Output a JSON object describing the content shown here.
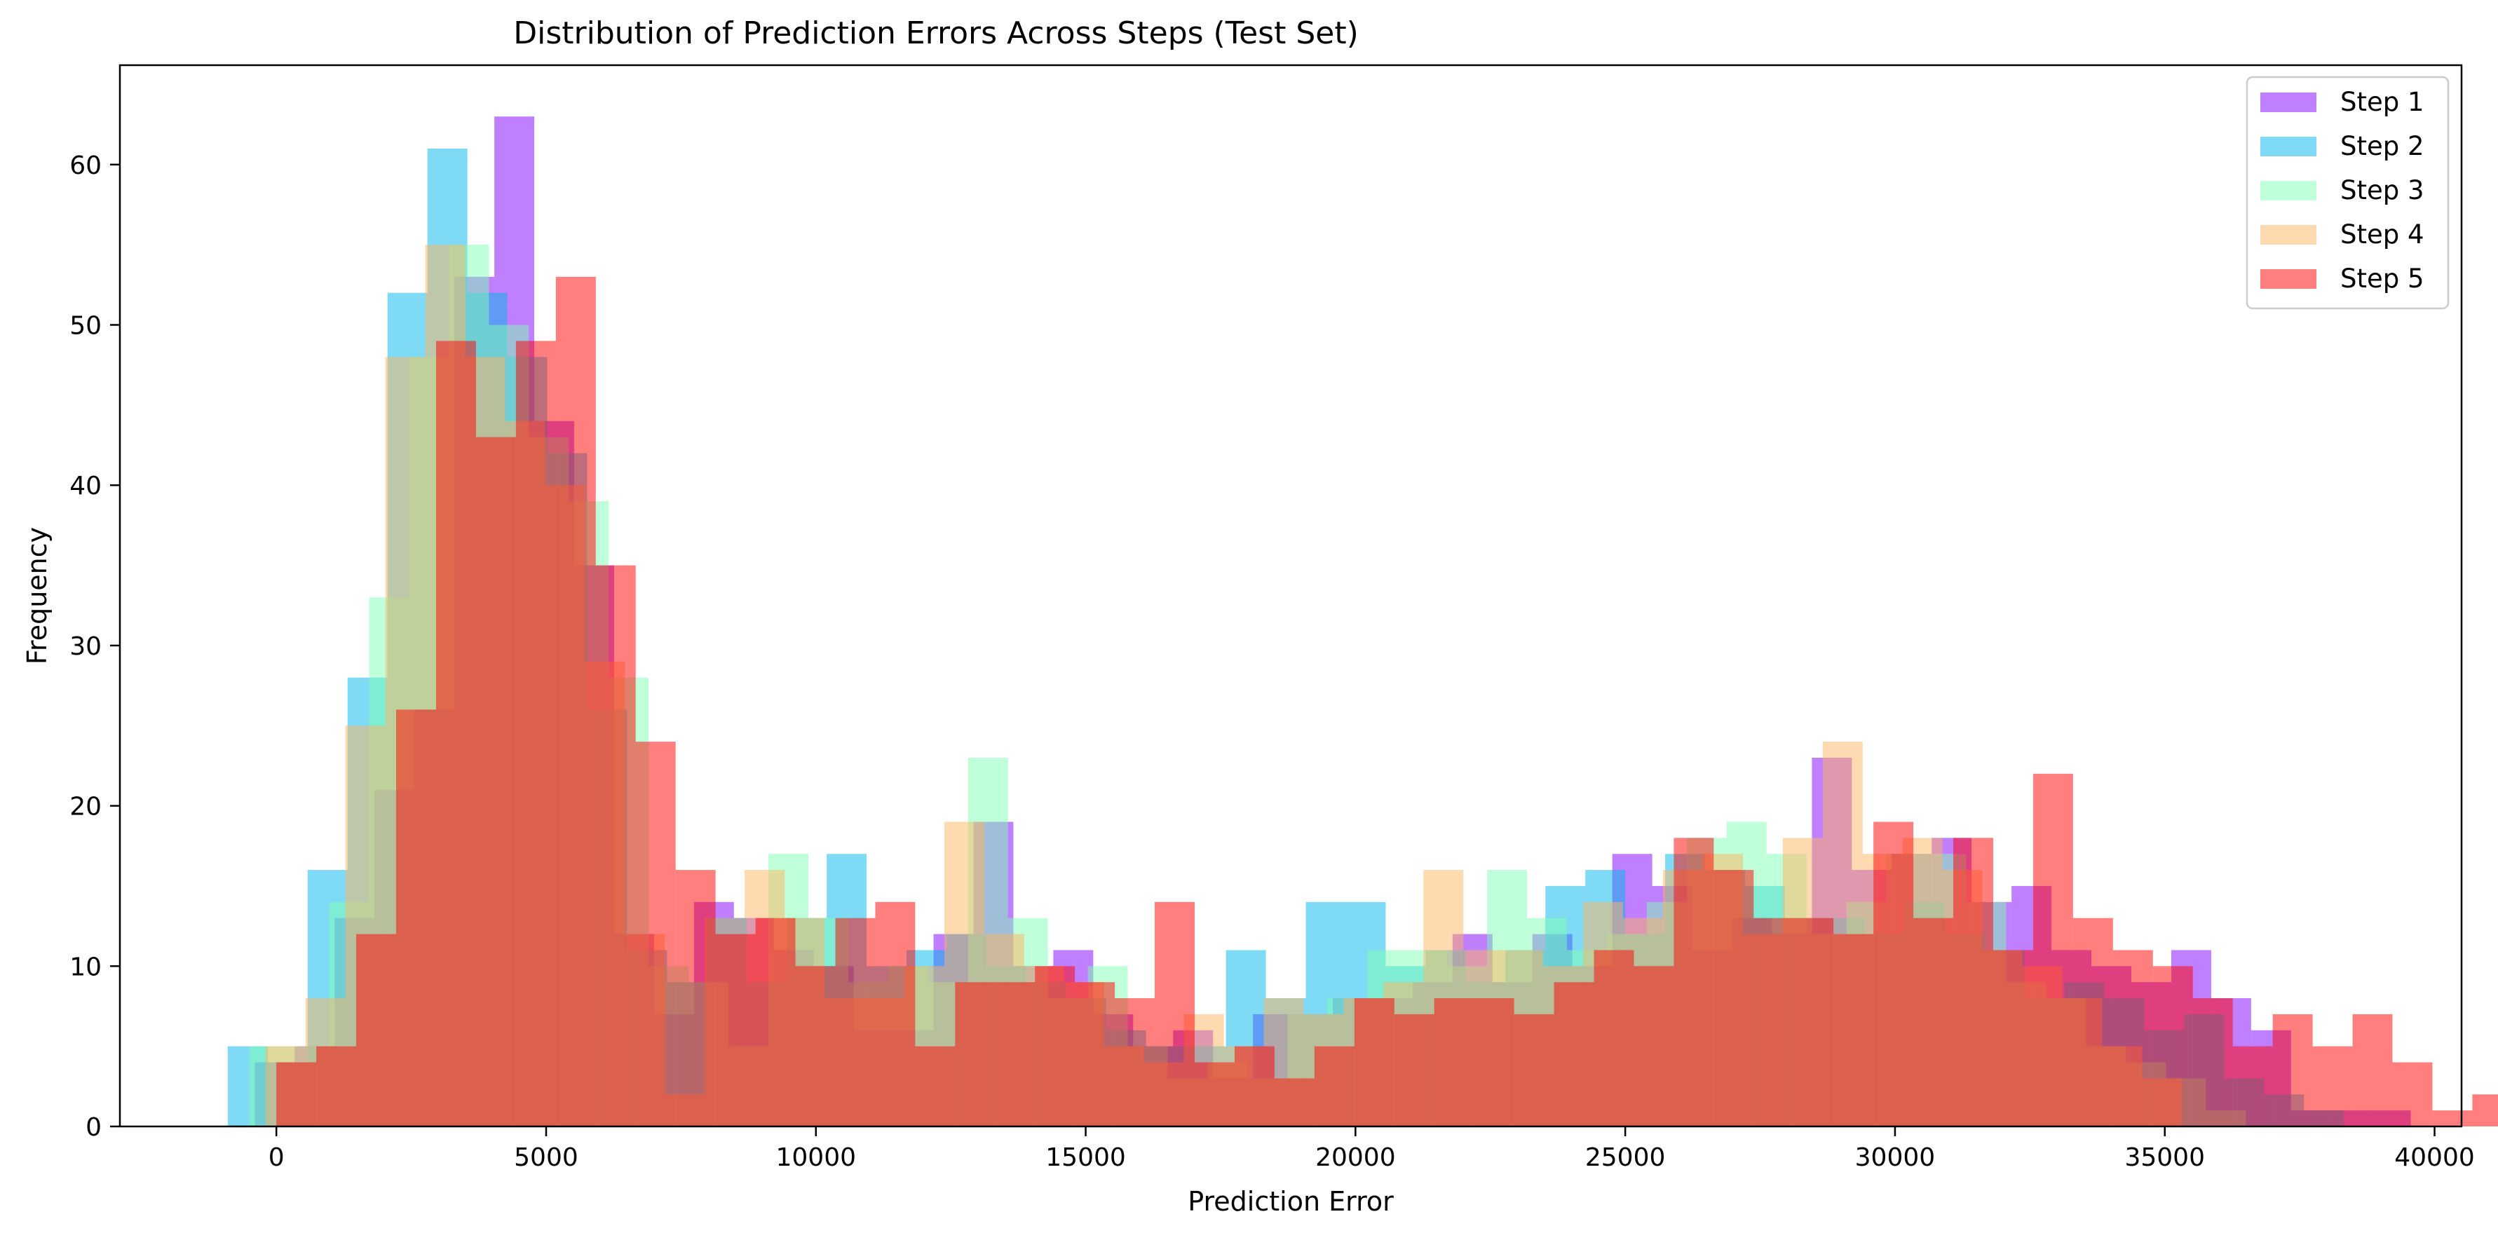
{
  "chart_data": {
    "type": "bar",
    "title": "Distribution of Prediction Errors Across Steps (Test Set)",
    "xlabel": "Prediction Error",
    "ylabel": "Frequency",
    "xlim": [
      -2900,
      40500
    ],
    "ylim": [
      0,
      66.2
    ],
    "x_ticks": [
      0,
      5000,
      10000,
      15000,
      20000,
      25000,
      30000,
      35000,
      40000
    ],
    "x_tick_labels": [
      "0",
      "5000",
      "10000",
      "15000",
      "20000",
      "25000",
      "30000",
      "35000",
      "40000"
    ],
    "y_ticks": [
      0,
      10,
      20,
      30,
      40,
      50,
      60
    ],
    "y_tick_labels": [
      "0",
      "10",
      "20",
      "30",
      "40",
      "50",
      "60"
    ],
    "legend_position": "top-right",
    "grid": false,
    "bin_width_approx": 740,
    "series": [
      {
        "name": "Step 1",
        "color": "#8000ff",
        "alpha": 0.5,
        "bins_start": -400,
        "bin_width": 740,
        "counts": [
          4,
          5,
          13,
          21,
          26,
          53,
          63,
          44,
          35,
          12,
          7,
          14,
          13,
          11,
          10,
          6,
          6,
          12,
          19,
          10,
          11,
          7,
          5,
          6,
          3,
          7,
          7,
          8,
          8,
          9,
          12,
          9,
          12,
          10,
          17,
          15,
          11,
          13,
          12,
          23,
          16,
          17,
          18,
          14,
          15,
          11,
          10,
          9,
          11,
          8,
          6,
          1,
          1,
          1
        ]
      },
      {
        "name": "Step 2",
        "color": "#00b5eb",
        "alpha": 0.5,
        "bins_start": -900,
        "bin_width": 740,
        "counts": [
          5,
          4,
          16,
          28,
          52,
          61,
          52,
          48,
          42,
          26,
          11,
          9,
          13,
          9,
          13,
          17,
          10,
          11,
          12,
          10,
          9,
          8,
          6,
          5,
          5,
          11,
          8,
          14,
          14,
          10,
          11,
          9,
          11,
          15,
          16,
          12,
          17,
          16,
          15,
          13,
          13,
          12,
          14,
          12,
          11,
          8,
          9,
          8,
          6,
          7,
          3,
          2,
          1
        ]
      },
      {
        "name": "Step 3",
        "color": "#80ffb4",
        "alpha": 0.5,
        "bins_start": -500,
        "bin_width": 740,
        "counts": [
          5,
          5,
          14,
          33,
          48,
          55,
          50,
          43,
          39,
          28,
          10,
          9,
          5,
          17,
          13,
          9,
          10,
          9,
          23,
          13,
          8,
          10,
          5,
          3,
          4,
          3,
          7,
          8,
          11,
          11,
          10,
          16,
          13,
          11,
          12,
          14,
          18,
          19,
          17,
          12,
          14,
          17,
          17,
          14,
          9,
          8,
          5,
          4,
          3,
          1
        ]
      },
      {
        "name": "Step 4",
        "color": "#ffb360",
        "alpha": 0.5,
        "bins_start": -200,
        "bin_width": 740,
        "counts": [
          5,
          8,
          25,
          48,
          55,
          48,
          44,
          40,
          29,
          12,
          2,
          13,
          16,
          13,
          8,
          8,
          10,
          19,
          12,
          10,
          9,
          5,
          4,
          7,
          5,
          8,
          7,
          8,
          9,
          16,
          11,
          11,
          10,
          14,
          13,
          16,
          17,
          12,
          18,
          24,
          17,
          18,
          16,
          11,
          10,
          8,
          5,
          3
        ]
      },
      {
        "name": "Step 5",
        "color": "#ff0000",
        "alpha": 0.5,
        "bins_start": 0,
        "bin_width": 740,
        "counts": [
          4,
          5,
          12,
          26,
          49,
          43,
          49,
          53,
          35,
          24,
          16,
          12,
          13,
          10,
          13,
          14,
          5,
          9,
          9,
          10,
          9,
          8,
          14,
          4,
          5,
          3,
          5,
          8,
          7,
          8,
          8,
          7,
          9,
          11,
          10,
          18,
          16,
          13,
          13,
          12,
          19,
          13,
          18,
          11,
          22,
          13,
          11,
          10,
          8,
          5,
          7,
          5,
          7,
          4,
          1,
          2
        ]
      }
    ]
  }
}
